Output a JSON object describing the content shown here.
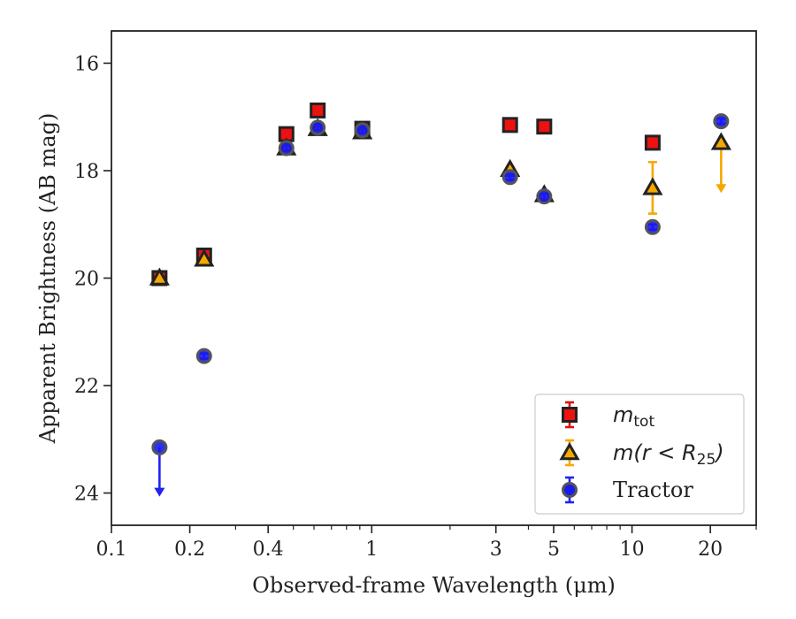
{
  "chart_data": {
    "type": "scatter",
    "title": "",
    "xlabel": "Observed-frame Wavelength (μm)",
    "ylabel": "Apparent Brightness (AB mag)",
    "xscale": "log",
    "xlim": [
      0.1,
      30
    ],
    "ylim": [
      24.6,
      15.4
    ],
    "y_inverted": true,
    "xticks": [
      {
        "value": 0.1,
        "label": "0.1"
      },
      {
        "value": 0.2,
        "label": "0.2"
      },
      {
        "value": 0.4,
        "label": "0.4"
      },
      {
        "value": 1,
        "label": "1"
      },
      {
        "value": 3,
        "label": "3"
      },
      {
        "value": 5,
        "label": "5"
      },
      {
        "value": 10,
        "label": "10"
      },
      {
        "value": 20,
        "label": "20"
      }
    ],
    "yticks": [
      {
        "value": 16,
        "label": "16"
      },
      {
        "value": 18,
        "label": "18"
      },
      {
        "value": 20,
        "label": "20"
      },
      {
        "value": 22,
        "label": "22"
      },
      {
        "value": 24,
        "label": "24"
      }
    ],
    "grid": false,
    "legend_position": "bottom-right",
    "series": [
      {
        "name": "m_tot",
        "legend_main": "m",
        "legend_sub": "tot",
        "marker": "square",
        "fill": "#ee1111",
        "error_color": "#dd1111",
        "points": [
          {
            "x": 0.153,
            "y": 20.0,
            "err": 0.1
          },
          {
            "x": 0.227,
            "y": 19.58,
            "err": 0.08
          },
          {
            "x": 0.47,
            "y": 17.32,
            "err": 0.05
          },
          {
            "x": 0.62,
            "y": 16.88,
            "err": 0.05
          },
          {
            "x": 0.92,
            "y": 17.22,
            "err": 0.05
          },
          {
            "x": 3.4,
            "y": 17.15,
            "err": 0.05
          },
          {
            "x": 4.6,
            "y": 17.18,
            "err": 0.05
          },
          {
            "x": 12.0,
            "y": 17.48,
            "err": 0.05
          }
        ]
      },
      {
        "name": "m(r < R_25)",
        "legend_text": "m(r < R",
        "legend_sub": "25",
        "legend_tail": ")",
        "marker": "triangle",
        "fill": "#f5a800",
        "error_color": "#f5a800",
        "points": [
          {
            "x": 0.153,
            "y": 20.0,
            "err": 0.05
          },
          {
            "x": 0.227,
            "y": 19.65,
            "err": 0.05
          },
          {
            "x": 0.47,
            "y": 17.58,
            "err": 0.05
          },
          {
            "x": 0.62,
            "y": 17.22,
            "err": 0.05
          },
          {
            "x": 0.92,
            "y": 17.28,
            "err": 0.05
          },
          {
            "x": 3.4,
            "y": 17.98,
            "err": 0.05
          },
          {
            "x": 4.6,
            "y": 18.45,
            "err": 0.05
          },
          {
            "x": 12.0,
            "y": 18.32,
            "err": 0.48
          },
          {
            "x": 22.0,
            "y": 17.48,
            "upper_limit": true,
            "limit_to": 18.4
          }
        ]
      },
      {
        "name": "Tractor",
        "legend_text": "Tractor",
        "marker": "circle",
        "fill": "#1a1aee",
        "error_color": "#2222ee",
        "points": [
          {
            "x": 0.153,
            "y": 23.15,
            "upper_limit": true,
            "limit_to": 24.05
          },
          {
            "x": 0.227,
            "y": 21.45,
            "err": 0.05
          },
          {
            "x": 0.47,
            "y": 17.58,
            "err": 0.05
          },
          {
            "x": 0.62,
            "y": 17.2,
            "err": 0.05
          },
          {
            "x": 0.92,
            "y": 17.25,
            "err": 0.05
          },
          {
            "x": 3.4,
            "y": 18.12,
            "err": 0.05
          },
          {
            "x": 4.6,
            "y": 18.48,
            "err": 0.05
          },
          {
            "x": 12.0,
            "y": 19.05,
            "err": 0.05
          },
          {
            "x": 22.0,
            "y": 17.08,
            "err": 0.05
          }
        ]
      }
    ]
  }
}
